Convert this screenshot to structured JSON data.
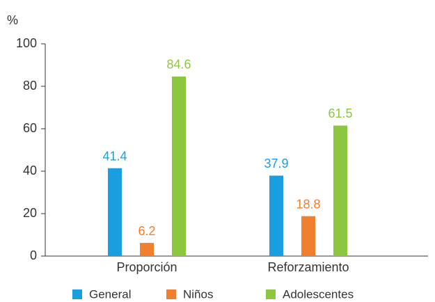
{
  "chart_data": {
    "type": "bar",
    "y_label": "%",
    "categories": [
      "Proporción",
      "Reforzamiento"
    ],
    "series": [
      {
        "name": "General",
        "color": "#1a9ee0",
        "values": [
          41.4,
          37.9
        ]
      },
      {
        "name": "Niños",
        "color": "#f07f2f",
        "values": [
          6.2,
          18.8
        ]
      },
      {
        "name": "Adolescentes",
        "color": "#8dc63f",
        "values": [
          84.6,
          61.5
        ]
      }
    ],
    "ylim": [
      0,
      100
    ],
    "yticks": [
      0,
      20,
      40,
      60,
      80,
      100
    ],
    "grid": false,
    "legend": "bottom"
  }
}
